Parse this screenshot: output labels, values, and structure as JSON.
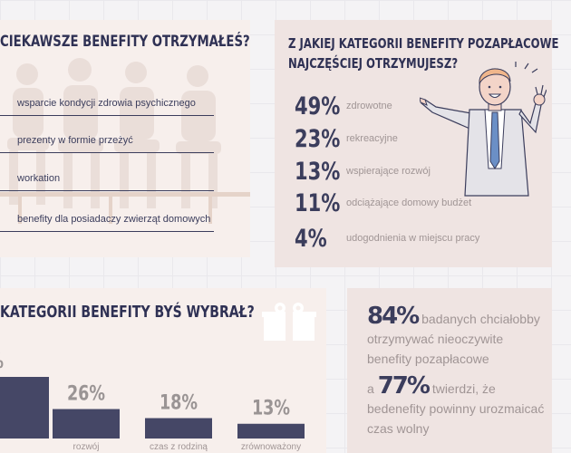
{
  "card1": {
    "title": "CIEKAWSZE BENEFITY OTRZYMAŁEŚ?",
    "items": [
      "wsparcie kondycji zdrowia psychicznego",
      "prezenty w formie przeżyć",
      "workation",
      "benefity dla posiadaczy zwierząt domowych"
    ]
  },
  "card2": {
    "title_line1": "Z JAKIEJ KATEGORII BENEFITY POZAPŁACOWE",
    "title_line2": "NAJCZĘŚCIEJ OTRZYMUJESZ?",
    "stats": [
      {
        "pct": "49%",
        "label": "zdrowotne"
      },
      {
        "pct": "23%",
        "label": "rekreacyjne"
      },
      {
        "pct": "13%",
        "label": "wspierające rozwój"
      },
      {
        "pct": "11%",
        "label": "odciążające domowy budżet"
      },
      {
        "pct": "4%",
        "label": "udogodnienia w miejscu pracy"
      }
    ]
  },
  "card3": {
    "title": "KATEGORII BENEFITY BYŚ WYBRAŁ?"
  },
  "card4": {
    "p1_big": "84%",
    "p1_text": "badanych chciałobby otrzymywać nieoczywite benefity pozapłacowe",
    "p2_prefix": "a",
    "p2_big": "77%",
    "p2_text": "twierdzi, że bedenefity powinny urozmaicać czas wolny"
  },
  "chart_data": {
    "type": "bar",
    "title": "KATEGORII BENEFITY BYŚ WYBRAŁ?",
    "categories": [
      "",
      "rozwój",
      "czas z rodziną",
      "zrównoważony"
    ],
    "values": [
      null,
      26,
      18,
      13
    ],
    "labels": [
      "%",
      "26%",
      "18%",
      "13%"
    ],
    "colors": {
      "bar": "#454766",
      "label": "#a09595",
      "value": "#9a9494"
    }
  }
}
